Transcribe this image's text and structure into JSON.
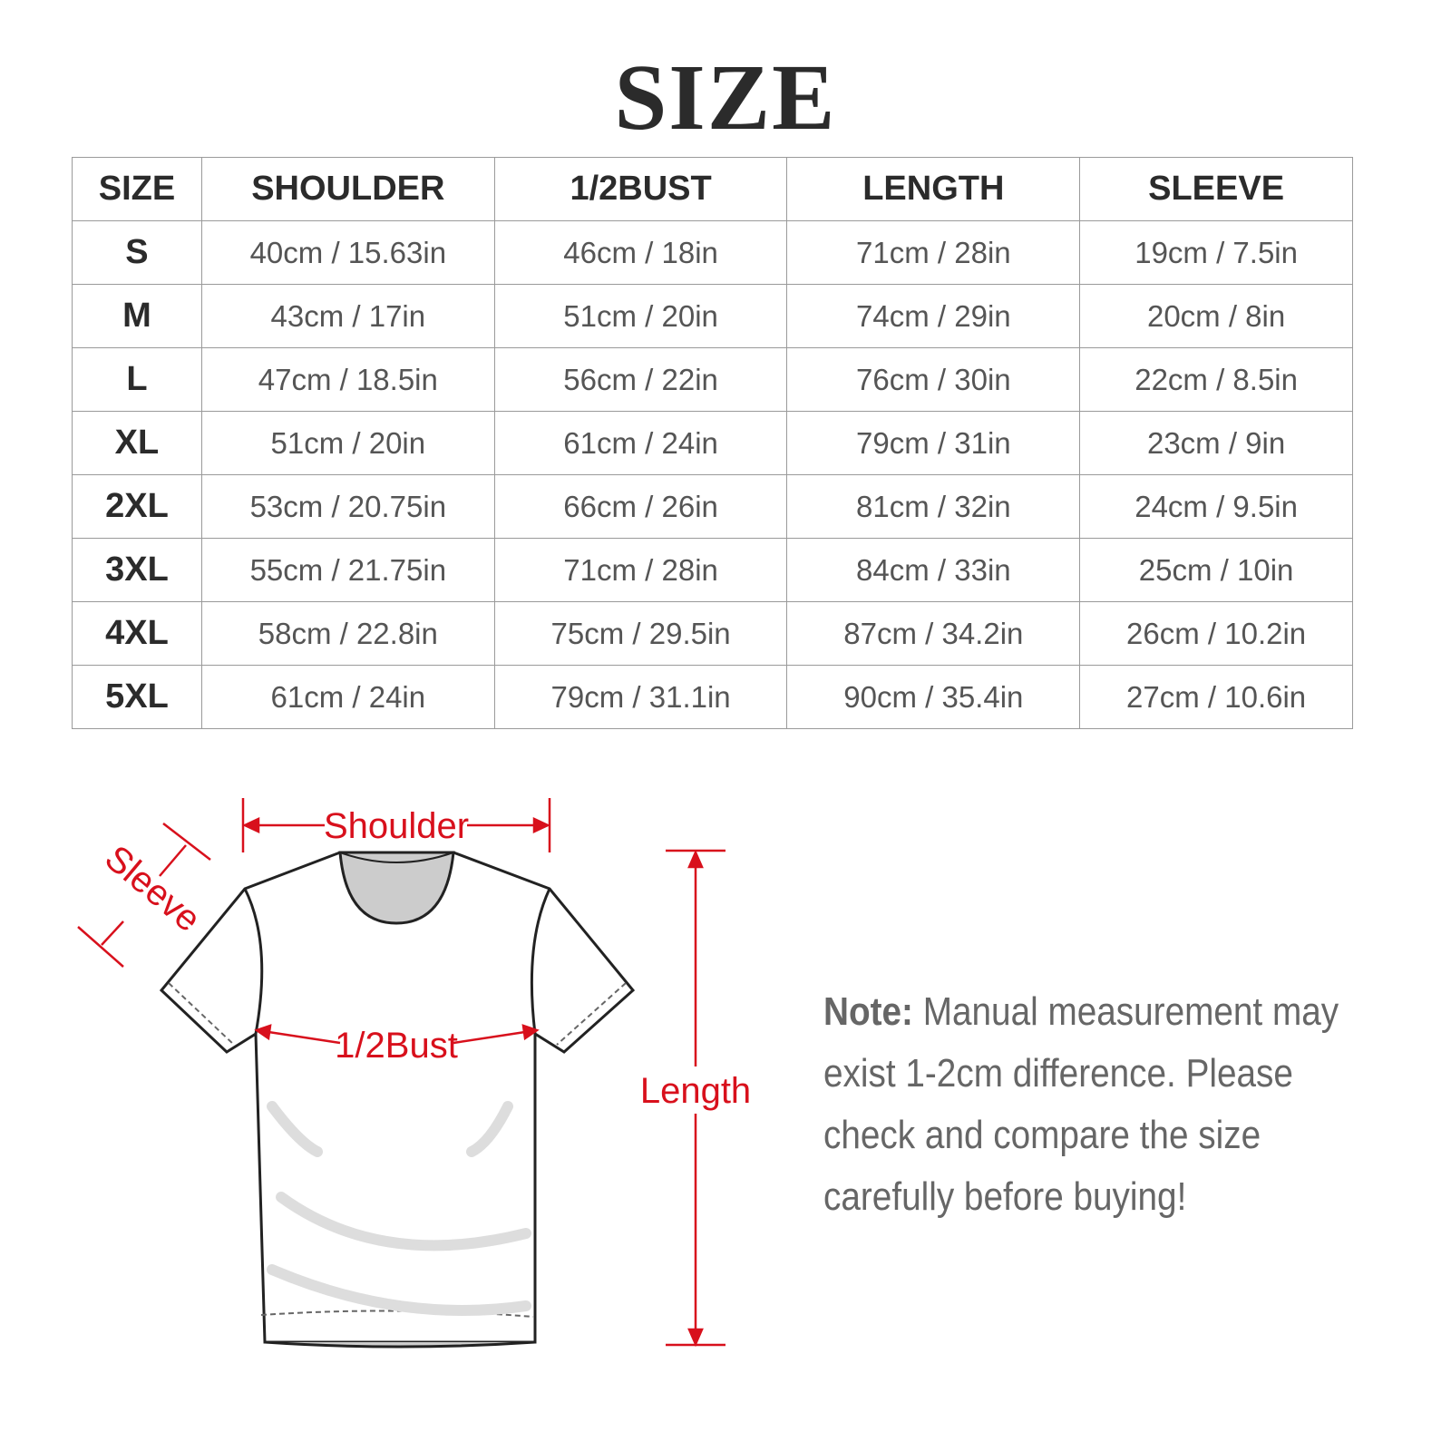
{
  "title": "SIZE",
  "table": {
    "headers": [
      "SIZE",
      "SHOULDER",
      "1/2BUST",
      "LENGTH",
      "SLEEVE"
    ],
    "rows": [
      [
        "S",
        "40cm / 15.63in",
        "46cm / 18in",
        "71cm / 28in",
        "19cm / 7.5in"
      ],
      [
        "M",
        "43cm / 17in",
        "51cm / 20in",
        "74cm / 29in",
        "20cm / 8in"
      ],
      [
        "L",
        "47cm / 18.5in",
        "56cm / 22in",
        "76cm / 30in",
        "22cm / 8.5in"
      ],
      [
        "XL",
        "51cm / 20in",
        "61cm / 24in",
        "79cm / 31in",
        "23cm / 9in"
      ],
      [
        "2XL",
        "53cm / 20.75in",
        "66cm / 26in",
        "81cm / 32in",
        "24cm / 9.5in"
      ],
      [
        "3XL",
        "55cm / 21.75in",
        "71cm / 28in",
        "84cm / 33in",
        "25cm / 10in"
      ],
      [
        "4XL",
        "58cm / 22.8in",
        "75cm / 29.5in",
        "87cm / 34.2in",
        "26cm / 10.2in"
      ],
      [
        "5XL",
        "61cm / 24in",
        "79cm / 31.1in",
        "90cm / 35.4in",
        "27cm / 10.6in"
      ]
    ]
  },
  "diagram": {
    "labels": {
      "shoulder": "Shoulder",
      "sleeve": "Sleeve",
      "bust": "1/2Bust",
      "length": "Length"
    },
    "accent_color": "#d8101c"
  },
  "note": {
    "label": "Note:",
    "text": "Manual measurement may exist 1-2cm difference. Please check and compare the size carefully before buying!"
  }
}
